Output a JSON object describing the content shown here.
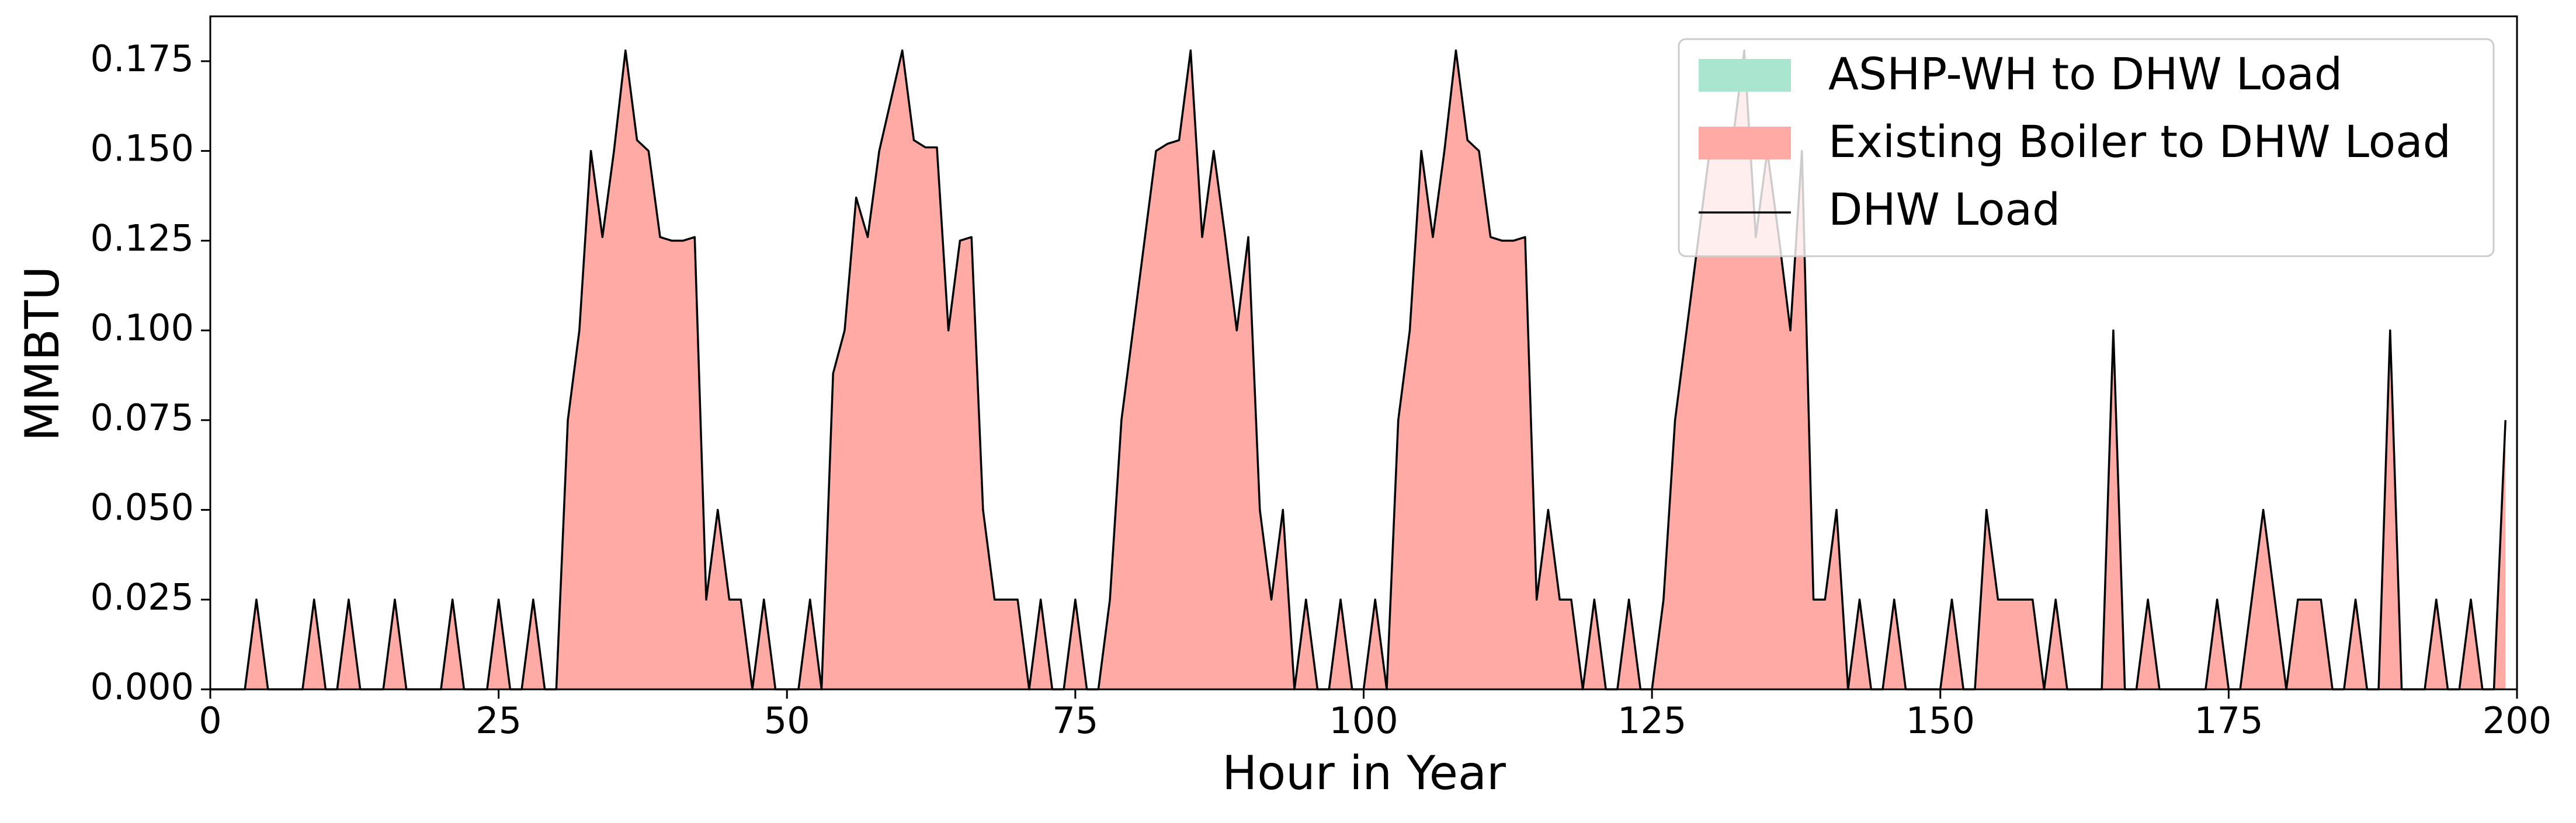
{
  "chart_data": {
    "type": "area",
    "xlabel": "Hour in Year",
    "ylabel": "MMBTU",
    "x": [
      0,
      1,
      2,
      3,
      4,
      5,
      6,
      7,
      8,
      9,
      10,
      11,
      12,
      13,
      14,
      15,
      16,
      17,
      18,
      19,
      20,
      21,
      22,
      23,
      24,
      25,
      26,
      27,
      28,
      29,
      30,
      31,
      32,
      33,
      34,
      35,
      36,
      37,
      38,
      39,
      40,
      41,
      42,
      43,
      44,
      45,
      46,
      47,
      48,
      49,
      50,
      51,
      52,
      53,
      54,
      55,
      56,
      57,
      58,
      59,
      60,
      61,
      62,
      63,
      64,
      65,
      66,
      67,
      68,
      69,
      70,
      71,
      72,
      73,
      74,
      75,
      76,
      77,
      78,
      79,
      80,
      81,
      82,
      83,
      84,
      85,
      86,
      87,
      88,
      89,
      90,
      91,
      92,
      93,
      94,
      95,
      96,
      97,
      98,
      99,
      100,
      101,
      102,
      103,
      104,
      105,
      106,
      107,
      108,
      109,
      110,
      111,
      112,
      113,
      114,
      115,
      116,
      117,
      118,
      119,
      120,
      121,
      122,
      123,
      124,
      125,
      126,
      127,
      128,
      129,
      130,
      131,
      132,
      133,
      134,
      135,
      136,
      137,
      138,
      139,
      140,
      141,
      142,
      143,
      144,
      145,
      146,
      147,
      148,
      149,
      150,
      151,
      152,
      153,
      154,
      155,
      156,
      157,
      158,
      159,
      160,
      161,
      162,
      163,
      164,
      165,
      166,
      167,
      168,
      169,
      170,
      171,
      172,
      173,
      174,
      175,
      176,
      177,
      178,
      179,
      180,
      181,
      182,
      183,
      184,
      185,
      186,
      187,
      188,
      189,
      190,
      191,
      192,
      193,
      194,
      195,
      196,
      197,
      198,
      199
    ],
    "series": [
      {
        "name": "ASHP-WH to DHW Load",
        "type": "area",
        "color": "#a9e5cf",
        "values": [
          0,
          0,
          0,
          0,
          0,
          0,
          0,
          0,
          0,
          0,
          0,
          0,
          0,
          0,
          0,
          0,
          0,
          0,
          0,
          0,
          0,
          0,
          0,
          0,
          0,
          0,
          0,
          0,
          0,
          0,
          0,
          0,
          0,
          0,
          0,
          0,
          0,
          0,
          0,
          0,
          0,
          0,
          0,
          0,
          0,
          0,
          0,
          0,
          0,
          0,
          0,
          0,
          0,
          0,
          0,
          0,
          0,
          0,
          0,
          0,
          0,
          0,
          0,
          0,
          0,
          0,
          0,
          0,
          0,
          0,
          0,
          0,
          0,
          0,
          0,
          0,
          0,
          0,
          0,
          0,
          0,
          0,
          0,
          0,
          0,
          0,
          0,
          0,
          0,
          0,
          0,
          0,
          0,
          0,
          0,
          0,
          0,
          0,
          0,
          0,
          0,
          0,
          0,
          0,
          0,
          0,
          0,
          0,
          0,
          0,
          0,
          0,
          0,
          0,
          0,
          0,
          0,
          0,
          0,
          0,
          0,
          0,
          0,
          0,
          0,
          0,
          0,
          0,
          0,
          0,
          0,
          0,
          0,
          0,
          0,
          0,
          0,
          0,
          0,
          0,
          0,
          0,
          0,
          0,
          0,
          0,
          0,
          0,
          0,
          0,
          0,
          0,
          0,
          0,
          0,
          0,
          0,
          0,
          0,
          0,
          0,
          0,
          0,
          0,
          0,
          0,
          0,
          0,
          0,
          0,
          0,
          0,
          0,
          0,
          0,
          0,
          0,
          0,
          0,
          0,
          0,
          0,
          0,
          0,
          0,
          0,
          0,
          0,
          0,
          0,
          0,
          0,
          0,
          0,
          0,
          0,
          0,
          0,
          0,
          0
        ]
      },
      {
        "name": "Existing Boiler to DHW Load",
        "type": "area",
        "color": "#ffaaa5",
        "values": [
          0,
          0,
          0,
          0,
          0.025,
          0,
          0,
          0,
          0,
          0.025,
          0,
          0,
          0.025,
          0,
          0,
          0,
          0.025,
          0,
          0,
          0,
          0,
          0.025,
          0,
          0,
          0,
          0.025,
          0,
          0,
          0.025,
          0,
          0,
          0.075,
          0.1,
          0.15,
          0.126,
          0.15,
          0.178,
          0.153,
          0.15,
          0.126,
          0.125,
          0.125,
          0.126,
          0.025,
          0.05,
          0.025,
          0.025,
          0,
          0.025,
          0,
          0,
          0,
          0.025,
          0,
          0.088,
          0.1,
          0.137,
          0.126,
          0.15,
          0.164,
          0.178,
          0.153,
          0.151,
          0.151,
          0.1,
          0.125,
          0.126,
          0.05,
          0.025,
          0.025,
          0.025,
          0,
          0.025,
          0,
          0,
          0.025,
          0,
          0,
          0.025,
          0.075,
          0.1,
          0.125,
          0.15,
          0.152,
          0.153,
          0.178,
          0.126,
          0.15,
          0.126,
          0.1,
          0.126,
          0.05,
          0.025,
          0.05,
          0,
          0.025,
          0,
          0,
          0.025,
          0,
          0,
          0.025,
          0,
          0.075,
          0.1,
          0.15,
          0.126,
          0.15,
          0.178,
          0.153,
          0.15,
          0.126,
          0.125,
          0.125,
          0.126,
          0.025,
          0.05,
          0.025,
          0.025,
          0,
          0.025,
          0,
          0,
          0.025,
          0,
          0,
          0.025,
          0.075,
          0.1,
          0.125,
          0.15,
          0.152,
          0.153,
          0.178,
          0.126,
          0.15,
          0.126,
          0.1,
          0.15,
          0.025,
          0.025,
          0.05,
          0,
          0.025,
          0,
          0,
          0.025,
          0,
          0,
          0,
          0,
          0.025,
          0,
          0,
          0.05,
          0.025,
          0.025,
          0.025,
          0.025,
          0,
          0.025,
          0,
          0,
          0,
          0,
          0.1,
          0,
          0,
          0.025,
          0,
          0,
          0,
          0,
          0,
          0.025,
          0,
          0,
          0.025,
          0.05,
          0.025,
          0,
          0.025,
          0.025,
          0.025,
          0,
          0,
          0.025,
          0,
          0,
          0.1,
          0,
          0,
          0,
          0.025,
          0,
          0,
          0.025,
          0,
          0,
          0.075
        ]
      },
      {
        "name": "DHW Load",
        "type": "line",
        "color": "#000000",
        "values": [
          0,
          0,
          0,
          0,
          0.025,
          0,
          0,
          0,
          0,
          0.025,
          0,
          0,
          0.025,
          0,
          0,
          0,
          0.025,
          0,
          0,
          0,
          0,
          0.025,
          0,
          0,
          0,
          0.025,
          0,
          0,
          0.025,
          0,
          0,
          0.075,
          0.1,
          0.15,
          0.126,
          0.15,
          0.178,
          0.153,
          0.15,
          0.126,
          0.125,
          0.125,
          0.126,
          0.025,
          0.05,
          0.025,
          0.025,
          0,
          0.025,
          0,
          0,
          0,
          0.025,
          0,
          0.088,
          0.1,
          0.137,
          0.126,
          0.15,
          0.164,
          0.178,
          0.153,
          0.151,
          0.151,
          0.1,
          0.125,
          0.126,
          0.05,
          0.025,
          0.025,
          0.025,
          0,
          0.025,
          0,
          0,
          0.025,
          0,
          0,
          0.025,
          0.075,
          0.1,
          0.125,
          0.15,
          0.152,
          0.153,
          0.178,
          0.126,
          0.15,
          0.126,
          0.1,
          0.126,
          0.05,
          0.025,
          0.05,
          0,
          0.025,
          0,
          0,
          0.025,
          0,
          0,
          0.025,
          0,
          0.075,
          0.1,
          0.15,
          0.126,
          0.15,
          0.178,
          0.153,
          0.15,
          0.126,
          0.125,
          0.125,
          0.126,
          0.025,
          0.05,
          0.025,
          0.025,
          0,
          0.025,
          0,
          0,
          0.025,
          0,
          0,
          0.025,
          0.075,
          0.1,
          0.125,
          0.15,
          0.152,
          0.153,
          0.178,
          0.126,
          0.15,
          0.126,
          0.1,
          0.15,
          0.025,
          0.025,
          0.05,
          0,
          0.025,
          0,
          0,
          0.025,
          0,
          0,
          0,
          0,
          0.025,
          0,
          0,
          0.05,
          0.025,
          0.025,
          0.025,
          0.025,
          0,
          0.025,
          0,
          0,
          0,
          0,
          0.1,
          0,
          0,
          0.025,
          0,
          0,
          0,
          0,
          0,
          0.025,
          0,
          0,
          0.025,
          0.05,
          0.025,
          0,
          0.025,
          0.025,
          0.025,
          0,
          0,
          0.025,
          0,
          0,
          0.1,
          0,
          0,
          0,
          0.025,
          0,
          0,
          0.025,
          0,
          0,
          0.075
        ]
      }
    ],
    "xlim": [
      0,
      200
    ],
    "ylim": [
      0,
      0.1875
    ],
    "xticks": [
      0,
      25,
      50,
      75,
      100,
      125,
      150,
      175,
      200
    ],
    "yticks": [
      {
        "value": 0,
        "label": "0.000"
      },
      {
        "value": 0.025,
        "label": "0.025"
      },
      {
        "value": 0.05,
        "label": "0.050"
      },
      {
        "value": 0.075,
        "label": "0.075"
      },
      {
        "value": 0.1,
        "label": "0.100"
      },
      {
        "value": 0.125,
        "label": "0.125"
      },
      {
        "value": 0.15,
        "label": "0.150"
      },
      {
        "value": 0.175,
        "label": "0.175"
      }
    ],
    "legend": "upper right",
    "grid": false
  }
}
